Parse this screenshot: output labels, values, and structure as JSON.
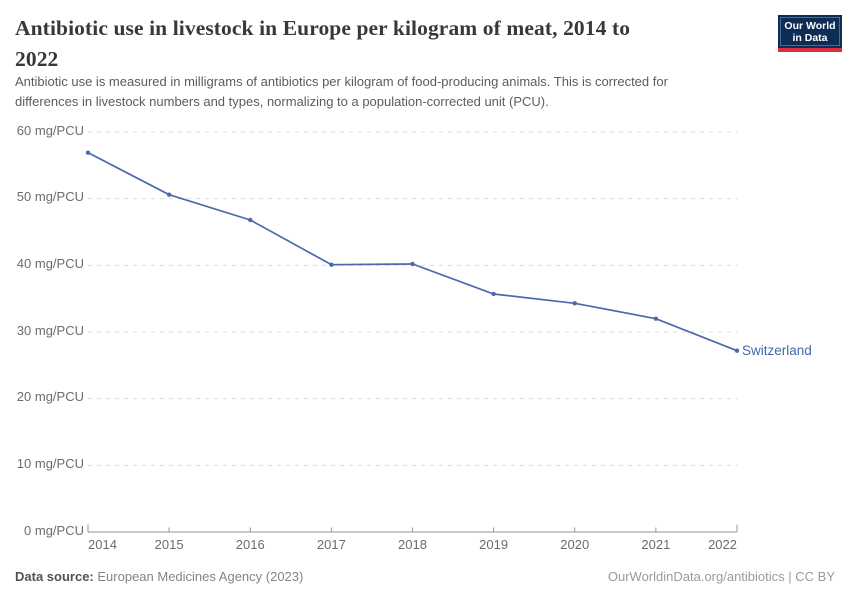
{
  "header": {
    "title_lines": [
      "Antibiotic use in livestock in Europe per kilogram of meat, 2014 to",
      "2022"
    ],
    "subtitle_lines": [
      "Antibiotic use is measured in milligrams of antibiotics per kilogram of food-producing animals. This is corrected for",
      "differences in livestock numbers and types, normalizing to a population-corrected unit (PCU)."
    ],
    "logo": {
      "line1": "Our World",
      "line2": "in Data"
    }
  },
  "chart_data": {
    "type": "line",
    "title": "Antibiotic use in livestock in Europe per kilogram of meat, 2014 to 2022",
    "unit": "mg/PCU",
    "categories": [
      "2014",
      "2015",
      "2016",
      "2017",
      "2018",
      "2019",
      "2020",
      "2021",
      "2022"
    ],
    "series": [
      {
        "name": "Switzerland",
        "values": [
          56.9,
          50.6,
          46.8,
          40.1,
          40.2,
          35.7,
          34.3,
          32.0,
          27.2
        ],
        "color": "#4a6aac",
        "label_color": "#3f69ae"
      }
    ],
    "ylim": [
      0,
      60
    ],
    "y_ticks": [
      {
        "value": 60,
        "label": "60 mg/PCU"
      },
      {
        "value": 50,
        "label": "50 mg/PCU"
      },
      {
        "value": 40,
        "label": "40 mg/PCU"
      },
      {
        "value": 30,
        "label": "30 mg/PCU"
      },
      {
        "value": 20,
        "label": "20 mg/PCU"
      },
      {
        "value": 10,
        "label": "10 mg/PCU"
      },
      {
        "value": 0,
        "label": "0 mg/PCU"
      }
    ],
    "grid": "horizontal-dashed",
    "legend": "end-of-line-label",
    "marker": "dot"
  },
  "footer": {
    "datasource_label": "Data source:",
    "datasource_value": "European Medicines Agency (2023)",
    "credit": "OurWorldinData.org/antibiotics | CC BY"
  },
  "colors": {
    "line_blue": "#4a6aac",
    "logo_navy": "#0e2d55",
    "logo_red": "#dc2c3e",
    "gridline": "#dcdcdc",
    "axis_gray": "#969696",
    "title_text": "#383838"
  }
}
